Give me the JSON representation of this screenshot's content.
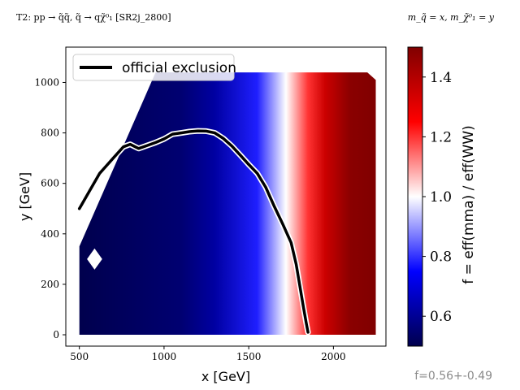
{
  "header": {
    "title_left": "T2: pp → q̃q̃, q̃ → qχ̃⁰₁ [SR2j_2800]",
    "title_right": "m_q̃ = x, m_χ̃⁰₁ = y"
  },
  "footer": {
    "stat": "f=0.56+-0.49"
  },
  "colors": {
    "low": "#00004d",
    "mid": "#ffffff",
    "high": "#800000",
    "curve": "#000000"
  },
  "chart_data": {
    "type": "heatmap",
    "title": "",
    "xlabel": "x [GeV]",
    "ylabel": "y [GeV]",
    "xlim": [
      420,
      2310
    ],
    "ylim": [
      -45,
      1140
    ],
    "xticks": [
      500,
      1000,
      1500,
      2000
    ],
    "yticks": [
      0,
      200,
      400,
      600,
      800,
      1000
    ],
    "colorbar": {
      "label": "f = eff(mma) / eff(WW)",
      "range": [
        0.5,
        1.5
      ],
      "ticks": [
        0.6,
        0.8,
        1.0,
        1.2,
        1.4
      ],
      "tick_labels": [
        "0.6",
        "0.8",
        "1.0",
        "1.2",
        "1.4"
      ],
      "colormap": "seismic"
    },
    "legend": {
      "position": "top-left",
      "entries": [
        "official exclusion"
      ]
    },
    "grid_region": [
      [
        500,
        0
      ],
      [
        2250,
        0
      ],
      [
        2250,
        1010
      ],
      [
        2200,
        1040
      ],
      [
        1910,
        1040
      ],
      [
        1400,
        1040
      ],
      [
        950,
        1040
      ],
      [
        500,
        350
      ]
    ],
    "trend": {
      "left_value": 0.5,
      "right_value": 1.5,
      "transition_points_x": [
        1100,
        1300,
        1550,
        1720,
        1850,
        1950,
        2100
      ],
      "transition_points_f": [
        0.55,
        0.62,
        0.78,
        1.0,
        1.2,
        1.35,
        1.48
      ]
    },
    "official_exclusion": {
      "x": [
        500,
        560,
        620,
        700,
        760,
        800,
        850,
        900,
        950,
        1000,
        1050,
        1100,
        1150,
        1200,
        1250,
        1300,
        1350,
        1400,
        1450,
        1500,
        1550,
        1600,
        1650,
        1700,
        1750,
        1780,
        1800,
        1820,
        1840,
        1850
      ],
      "y": [
        500,
        570,
        640,
        700,
        745,
        755,
        738,
        750,
        762,
        776,
        795,
        800,
        805,
        808,
        807,
        800,
        778,
        748,
        712,
        675,
        640,
        585,
        510,
        440,
        365,
        280,
        200,
        120,
        45,
        10
      ]
    }
  }
}
